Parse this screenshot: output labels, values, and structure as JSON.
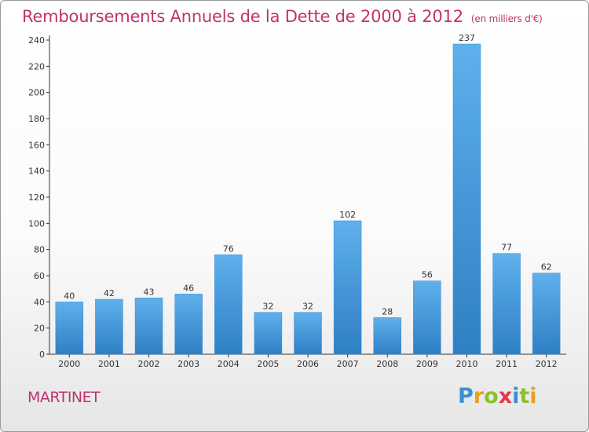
{
  "chart_data": {
    "type": "bar",
    "title": "Remboursements Annuels de la Dette de 2000 à 2012",
    "unit": "(en milliers d'€)",
    "xlabel": "",
    "ylabel": "",
    "categories": [
      "2000",
      "2001",
      "2002",
      "2003",
      "2004",
      "2005",
      "2006",
      "2007",
      "2008",
      "2009",
      "2010",
      "2011",
      "2012"
    ],
    "values": [
      40,
      42,
      43,
      46,
      76,
      32,
      32,
      102,
      28,
      56,
      237,
      77,
      62
    ],
    "ylim": [
      0,
      240
    ],
    "yticks": [
      0,
      20,
      40,
      60,
      80,
      100,
      120,
      140,
      160,
      180,
      200,
      220,
      240
    ],
    "grid": false,
    "bar_color": "#4c9fdf"
  },
  "commune": "MARTINET",
  "logo": {
    "letters": [
      "P",
      "r",
      "o",
      "x",
      "i",
      "t",
      "i"
    ],
    "colors": [
      "#3a8fd6",
      "#e8a020",
      "#8cbf2a",
      "#e23a4a",
      "#3a8fd6",
      "#8cbf2a",
      "#e8a020"
    ]
  },
  "colors": {
    "title": "#c0336e",
    "axis": "#333333"
  }
}
